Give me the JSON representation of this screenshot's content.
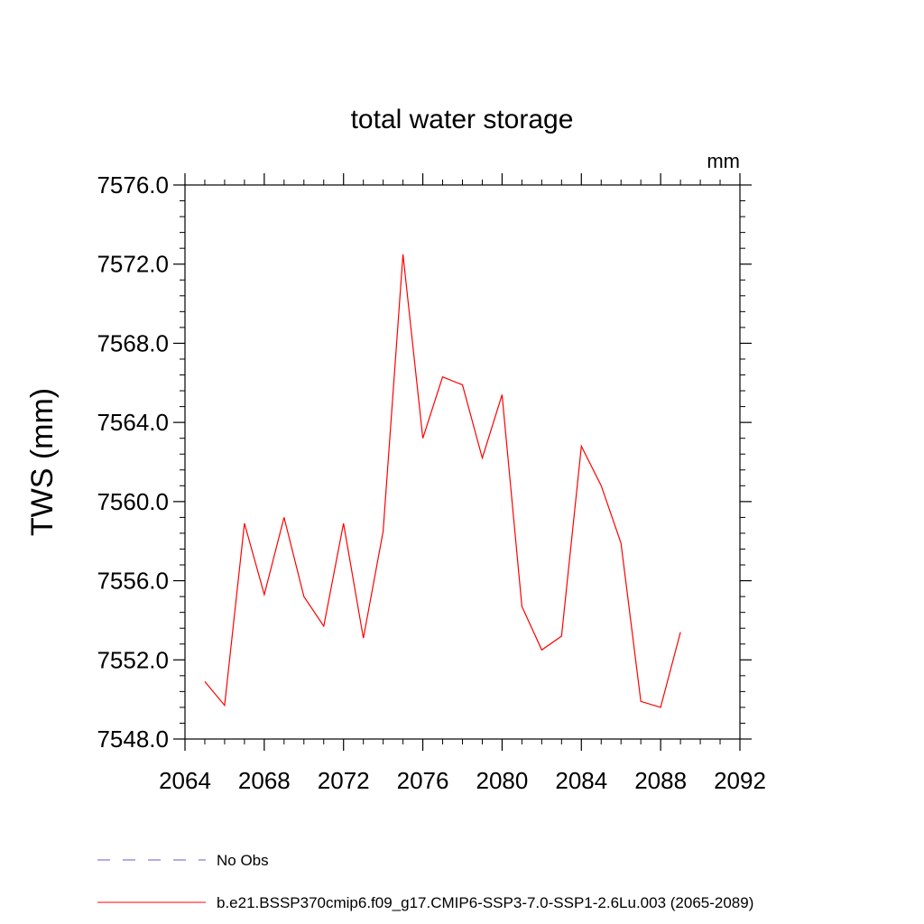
{
  "chart_data": {
    "type": "line",
    "title": "total water storage",
    "units_label": "mm",
    "ylabel": "TWS  (mm)",
    "xlabel": "",
    "xlim": [
      2064,
      2092
    ],
    "ylim": [
      7548.0,
      7576.0
    ],
    "x_ticks": [
      2064,
      2068,
      2072,
      2076,
      2080,
      2084,
      2088,
      2092
    ],
    "x_tick_labels": [
      "2064",
      "2068",
      "2072",
      "2076",
      "2080",
      "2084",
      "2088",
      "2092"
    ],
    "y_ticks": [
      7548,
      7552,
      7556,
      7560,
      7564,
      7568,
      7572,
      7576
    ],
    "y_tick_labels": [
      "7548.0",
      "7552.0",
      "7556.0",
      "7560.0",
      "7564.0",
      "7568.0",
      "7572.0",
      "7576.0"
    ],
    "series": [
      {
        "name": "b.e21.BSSP370cmip6.f09_g17.CMIP6-SSP3-7.0-SSP1-2.6Lu.003 (2065-2089)",
        "color": "#ff0000",
        "style": "solid",
        "x": [
          2065,
          2066,
          2067,
          2068,
          2069,
          2070,
          2071,
          2072,
          2073,
          2074,
          2075,
          2076,
          2077,
          2078,
          2079,
          2080,
          2081,
          2082,
          2083,
          2084,
          2085,
          2086,
          2087,
          2088,
          2089
        ],
        "values": [
          7550.9,
          7549.7,
          7558.9,
          7555.3,
          7559.2,
          7555.2,
          7553.7,
          7558.9,
          7553.1,
          7558.5,
          7572.5,
          7563.2,
          7566.3,
          7565.9,
          7562.2,
          7565.4,
          7554.7,
          7552.5,
          7553.2,
          7562.8,
          7560.8,
          7557.9,
          7549.9,
          7549.6,
          7553.4
        ]
      }
    ],
    "legend": [
      {
        "label": "No Obs",
        "color": "#6a5acd",
        "style": "dashed"
      },
      {
        "label": "b.e21.BSSP370cmip6.f09_g17.CMIP6-SSP3-7.0-SSP1-2.6Lu.003 (2065-2089)",
        "color": "#ff0000",
        "style": "solid"
      }
    ]
  }
}
